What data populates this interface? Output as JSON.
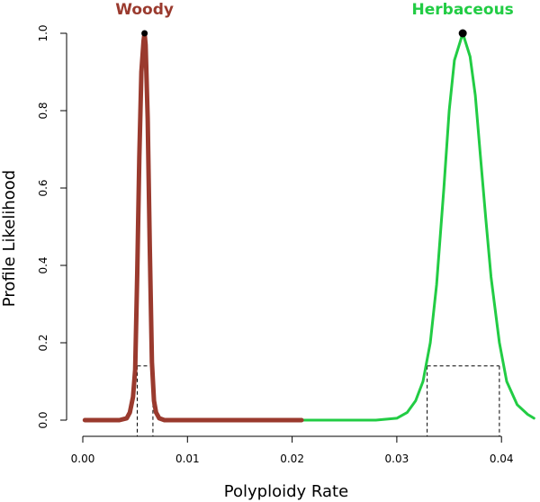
{
  "chart_data": {
    "type": "line",
    "xlabel": "Polyploidy Rate",
    "ylabel": "Profile Likelihood",
    "xlim": [
      0.0,
      0.043
    ],
    "ylim": [
      0.0,
      1.0
    ],
    "x_ticks": [
      "0.00",
      "0.01",
      "0.02",
      "0.03",
      "0.04"
    ],
    "y_ticks": [
      "0.0",
      "0.2",
      "0.4",
      "0.6",
      "0.8",
      "1.0"
    ],
    "grid": false,
    "series": [
      {
        "name": "Woody",
        "color": "#9a3a2e",
        "label_color": "#9a3a2e",
        "peak": {
          "x": 0.0059,
          "y": 1.0
        },
        "interval": {
          "lower": 0.0052,
          "upper": 0.0067,
          "level": 0.14
        },
        "x": [
          0.0002,
          0.0035,
          0.0042,
          0.0045,
          0.0048,
          0.005,
          0.0052,
          0.0054,
          0.0056,
          0.0058,
          0.0059,
          0.006,
          0.0062,
          0.0064,
          0.0066,
          0.0068,
          0.007,
          0.0073,
          0.0078,
          0.009,
          0.0209
        ],
        "values": [
          0.0,
          0.0,
          0.005,
          0.02,
          0.06,
          0.13,
          0.38,
          0.68,
          0.9,
          0.98,
          1.0,
          0.97,
          0.78,
          0.45,
          0.15,
          0.05,
          0.02,
          0.005,
          0.0,
          0.0,
          0.0
        ]
      },
      {
        "name": "Herbaceous",
        "color": "#22cc44",
        "label_color": "#22cc44",
        "peak": {
          "x": 0.0363,
          "y": 1.0
        },
        "interval": {
          "lower": 0.0329,
          "upper": 0.0398,
          "level": 0.14
        },
        "x": [
          0.0209,
          0.028,
          0.03,
          0.031,
          0.0318,
          0.0325,
          0.0332,
          0.0338,
          0.0345,
          0.035,
          0.0355,
          0.0363,
          0.037,
          0.0375,
          0.038,
          0.0385,
          0.039,
          0.0398,
          0.0405,
          0.0415,
          0.0425,
          0.0431
        ],
        "values": [
          0.0,
          0.0,
          0.005,
          0.02,
          0.05,
          0.1,
          0.2,
          0.35,
          0.6,
          0.8,
          0.93,
          1.0,
          0.94,
          0.84,
          0.68,
          0.52,
          0.37,
          0.2,
          0.1,
          0.04,
          0.015,
          0.005
        ]
      }
    ]
  }
}
